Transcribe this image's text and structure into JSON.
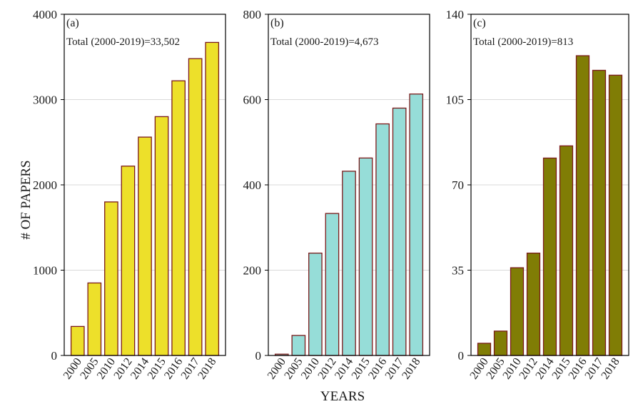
{
  "figure": {
    "ylabel": "# OF PAPERS",
    "xlabel": "YEARS"
  },
  "chart_data": [
    {
      "type": "bar",
      "panel_label": "(a)",
      "annotation": "Total (2000-2019)=33,502",
      "categories": [
        "2000",
        "2005",
        "2010",
        "2012",
        "2014",
        "2015",
        "2016",
        "2017",
        "2018"
      ],
      "values": [
        340,
        850,
        1800,
        2220,
        2560,
        2800,
        3220,
        3480,
        3670
      ],
      "ylim": [
        0,
        4000
      ],
      "yticks": [
        "0",
        "1000",
        "2000",
        "3000",
        "4000"
      ],
      "ytick_values": [
        0,
        1000,
        2000,
        3000,
        4000
      ],
      "bar_color": "#ede02a",
      "edge_color": "#7a1a1a",
      "grid": true
    },
    {
      "type": "bar",
      "panel_label": "(b)",
      "annotation": "Total (2000-2019)=4,673",
      "categories": [
        "2000",
        "2005",
        "2010",
        "2012",
        "2014",
        "2015",
        "2016",
        "2017",
        "2018"
      ],
      "values": [
        3,
        47,
        240,
        333,
        432,
        463,
        543,
        580,
        613
      ],
      "ylim": [
        0,
        800
      ],
      "yticks": [
        "0",
        "200",
        "400",
        "600",
        "800"
      ],
      "ytick_values": [
        0,
        200,
        400,
        600,
        800
      ],
      "bar_color": "#96ddd8",
      "edge_color": "#7a1a1a",
      "grid": true
    },
    {
      "type": "bar",
      "panel_label": "(c)",
      "annotation": "Total (2000-2019)=813",
      "categories": [
        "2000",
        "2005",
        "2010",
        "2012",
        "2014",
        "2015",
        "2016",
        "2017",
        "2018"
      ],
      "values": [
        5,
        10,
        36,
        42,
        81,
        86,
        123,
        117,
        115
      ],
      "ylim": [
        0,
        140
      ],
      "yticks": [
        "0",
        "35",
        "70",
        "105",
        "140"
      ],
      "ytick_values": [
        0,
        35,
        70,
        105,
        140
      ],
      "bar_color": "#807d05",
      "edge_color": "#7a1a1a",
      "grid": true
    }
  ]
}
